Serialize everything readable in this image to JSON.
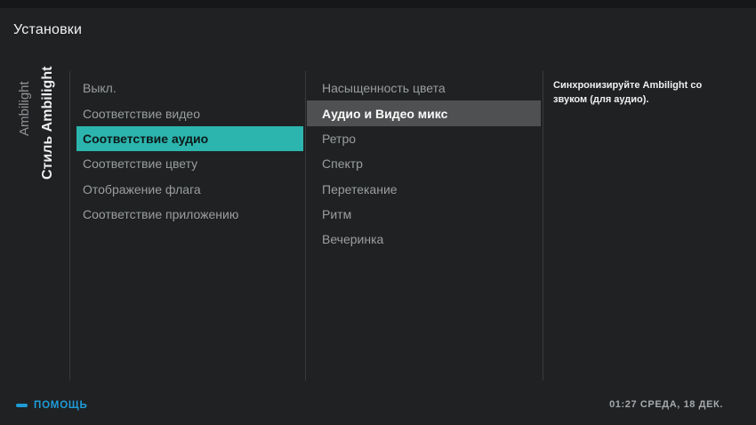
{
  "window": {
    "title": "Установки"
  },
  "sidebar": {
    "section_label": "Ambilight",
    "active_label": "Стиль Ambilight"
  },
  "menu": {
    "items": [
      {
        "label": "Выкл.",
        "state": "normal"
      },
      {
        "label": "Соответствие видео",
        "state": "normal"
      },
      {
        "label": "Соответствие аудио",
        "state": "selected"
      },
      {
        "label": "Соответствие цвету",
        "state": "normal"
      },
      {
        "label": "Отображение флага",
        "state": "normal"
      },
      {
        "label": "Соответствие приложению",
        "state": "disabled"
      }
    ]
  },
  "submenu": {
    "items": [
      {
        "label": "Насыщенность цвета",
        "state": "normal"
      },
      {
        "label": "Аудио и Видео микс",
        "state": "selected"
      },
      {
        "label": "Ретро",
        "state": "normal"
      },
      {
        "label": "Спектр",
        "state": "normal"
      },
      {
        "label": "Перетекание",
        "state": "normal"
      },
      {
        "label": "Ритм",
        "state": "normal"
      },
      {
        "label": "Вечеринка",
        "state": "normal"
      }
    ]
  },
  "description": {
    "text": "Синхронизируйте Ambilight со звуком (для аудио)."
  },
  "footer": {
    "help_label": "ПОМОЩЬ",
    "clock": "01:27 СРЕДА, 18 ДЕК."
  },
  "colors": {
    "background": "#1f2123",
    "accent_teal": "#2cb5ae",
    "highlight_gray": "#4e5051",
    "help_blue": "#1e9cd8"
  }
}
